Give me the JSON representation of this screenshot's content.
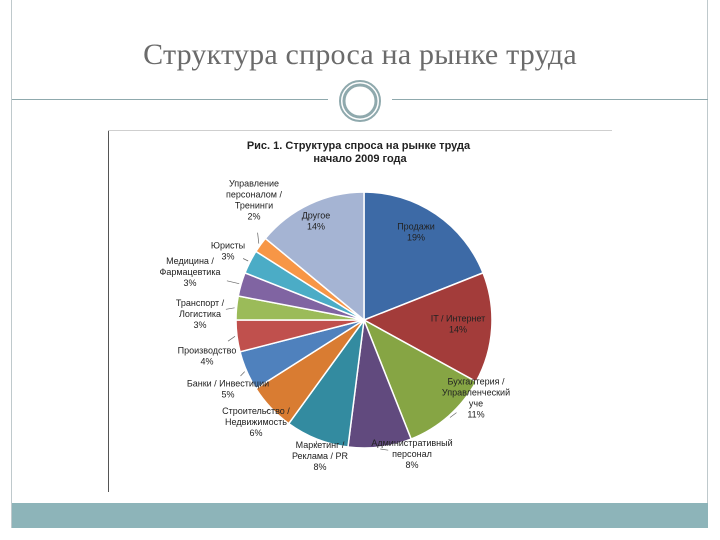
{
  "slide": {
    "title": "Структура спроса на рынке труда"
  },
  "colors": {
    "title_text": "#6b6b6b",
    "rule": "#8fa9ad",
    "bottom_bar": "#8db4b9"
  },
  "chart_data": {
    "type": "pie",
    "title_lines": [
      "Рис. 1. Структура спроса на рынке труда",
      "начало 2009 года"
    ],
    "slices": [
      {
        "label_lines": [
          "Продажи",
          "19%"
        ],
        "value": 19,
        "color": "#3d6aa6"
      },
      {
        "label_lines": [
          "IT / Интернет",
          "14%"
        ],
        "value": 14,
        "color": "#a33c3a"
      },
      {
        "label_lines": [
          "Бухгалтерия /",
          "Управленческий",
          "уче",
          "11%"
        ],
        "value": 11,
        "color": "#86a544"
      },
      {
        "label_lines": [
          "Административный",
          "персонал",
          "8%"
        ],
        "value": 8,
        "color": "#614a7e"
      },
      {
        "label_lines": [
          "Маркетинг /",
          "Реклама / PR",
          "8%"
        ],
        "value": 8,
        "color": "#338ba0"
      },
      {
        "label_lines": [
          "Строительство /",
          "Недвижимость",
          "6%"
        ],
        "value": 6,
        "color": "#d97c32"
      },
      {
        "label_lines": [
          "Банки / Инвестиции",
          "5%"
        ],
        "value": 5,
        "color": "#4f81bd"
      },
      {
        "label_lines": [
          "Производство",
          "4%"
        ],
        "value": 4,
        "color": "#c0504d"
      },
      {
        "label_lines": [
          "Транспорт /",
          "Логистика",
          "3%"
        ],
        "value": 3,
        "color": "#9bbb59"
      },
      {
        "label_lines": [
          "Медицина /",
          "Фармацевтика",
          "3%"
        ],
        "value": 3,
        "color": "#8064a2"
      },
      {
        "label_lines": [
          "Юристы",
          "3%"
        ],
        "value": 3,
        "color": "#4bacc6"
      },
      {
        "label_lines": [
          "Управление",
          "персоналом /",
          "Тренинги",
          "2%"
        ],
        "value": 2,
        "color": "#f79646"
      },
      {
        "label_lines": [
          "Другое",
          "14%"
        ],
        "value": 14,
        "color": "#a5b4d3"
      }
    ]
  }
}
